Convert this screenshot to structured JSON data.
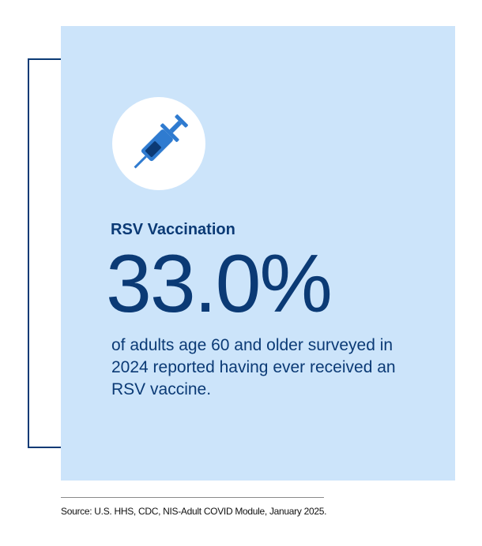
{
  "card": {
    "icon": "syringe-icon",
    "heading": "RSV Vaccination",
    "stat": "33.0%",
    "description": "of adults age 60 and older surveyed in 2024 reported having ever received an RSV vaccine."
  },
  "footer": {
    "source": "Source: U.S. HHS, CDC, NIS-Adult COVID Module, January 2025."
  },
  "colors": {
    "panel": "#cce4fa",
    "accent_dark": "#0b3a75",
    "icon_blue": "#2f7bd0"
  }
}
